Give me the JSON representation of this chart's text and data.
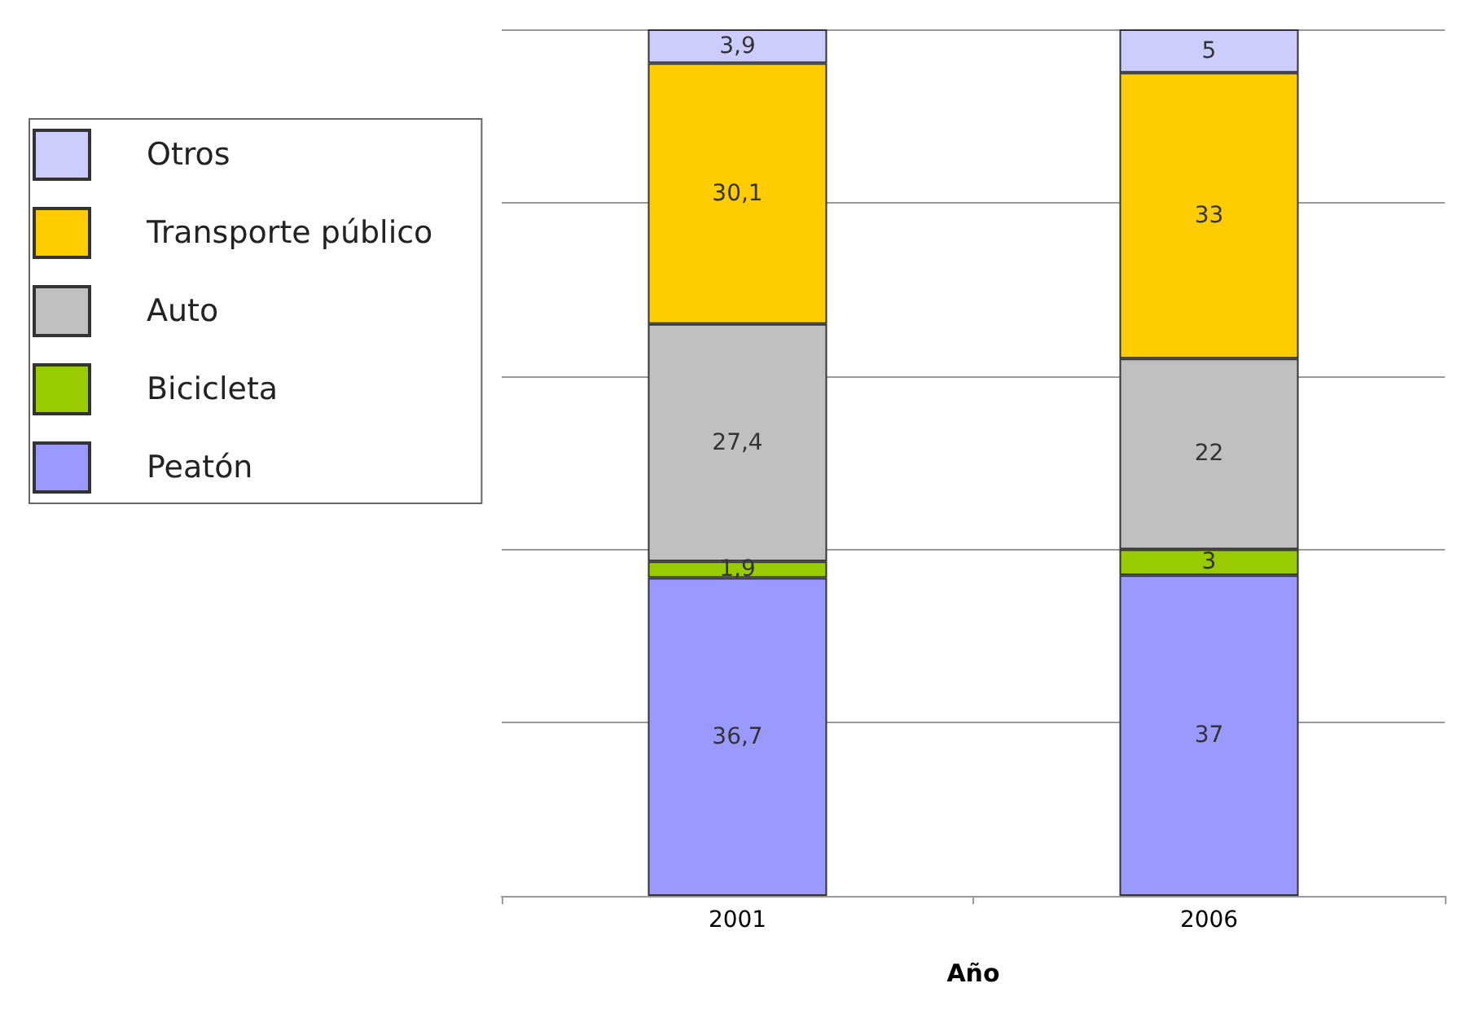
{
  "chart_data": {
    "type": "bar",
    "stacked": true,
    "xlabel": "Año",
    "categories": [
      "2001",
      "2006"
    ],
    "series": [
      {
        "name": "Peatón",
        "color": "#9999ff",
        "values": [
          36.7,
          37
        ],
        "value_labels": [
          "36,7",
          "37"
        ]
      },
      {
        "name": "Bicicleta",
        "color": "#99cc00",
        "values": [
          1.9,
          3
        ],
        "value_labels": [
          "1,9",
          "3"
        ]
      },
      {
        "name": "Auto",
        "color": "#c0c0c0",
        "values": [
          27.4,
          22
        ],
        "value_labels": [
          "27,4",
          "22"
        ]
      },
      {
        "name": "Transporte público",
        "color": "#ffcc00",
        "values": [
          30.1,
          33
        ],
        "value_labels": [
          "30,1",
          "33"
        ]
      },
      {
        "name": "Otros",
        "color": "#ccccff",
        "values": [
          3.9,
          5
        ],
        "value_labels": [
          "3,9",
          "5"
        ]
      }
    ],
    "ylim": [
      0,
      100
    ],
    "yticks": [
      {
        "value": 0,
        "label": null
      },
      {
        "value": 20,
        "label": null
      },
      {
        "value": 40,
        "label": null
      },
      {
        "value": 60,
        "label": null
      },
      {
        "value": 80,
        "label": null
      },
      {
        "value": 100,
        "label": null
      }
    ],
    "grid": "y",
    "legend": "top left",
    "tick_labels": "x"
  }
}
